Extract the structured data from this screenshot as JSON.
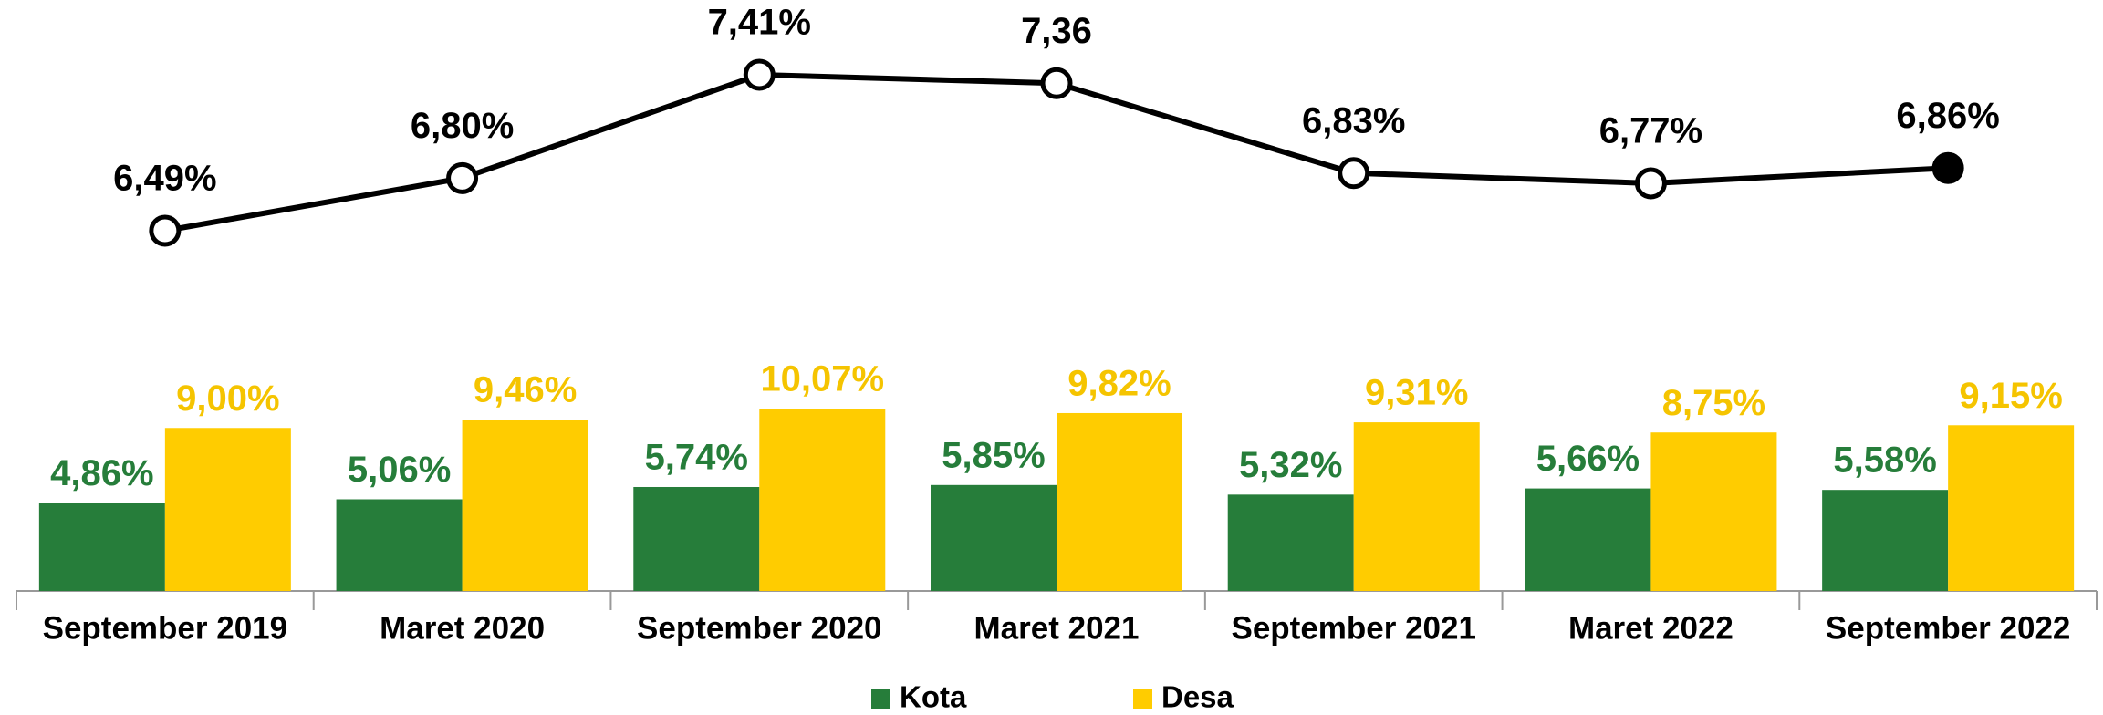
{
  "chart_data": [
    {
      "type": "bar",
      "categories": [
        "September 2019",
        "Maret 2020",
        "September 2020",
        "Maret 2021",
        "September 2021",
        "Maret 2022",
        "September 2022"
      ],
      "series": [
        {
          "name": "Kota",
          "color": "#267d3a",
          "label_color": "#267d3a",
          "values": [
            4.86,
            5.06,
            5.74,
            5.85,
            5.32,
            5.66,
            5.58
          ],
          "value_labels": [
            "4,86%",
            "5,06%",
            "5,74%",
            "5,85%",
            "5,32%",
            "5,66%",
            "5,58%"
          ]
        },
        {
          "name": "Desa",
          "color": "#ffcc00",
          "label_color": "#f5c400",
          "values": [
            9.0,
            9.46,
            10.07,
            9.82,
            9.31,
            8.75,
            9.15
          ],
          "value_labels": [
            "9,00%",
            "9,46%",
            "10,07%",
            "9,82%",
            "9,31%",
            "8,75%",
            "9,15%"
          ]
        }
      ],
      "legend": "bottom"
    },
    {
      "type": "line",
      "color": "#000000",
      "values": [
        6.49,
        6.8,
        7.41,
        7.36,
        6.83,
        6.77,
        6.86
      ],
      "value_labels": [
        "6,49%",
        "6,80%",
        "7,41%",
        "7,36",
        "6,83%",
        "6,77%",
        "6,86%"
      ],
      "marker_fill": [
        "#ffffff",
        "#ffffff",
        "#ffffff",
        "#ffffff",
        "#ffffff",
        "#ffffff",
        "#000000"
      ]
    }
  ]
}
